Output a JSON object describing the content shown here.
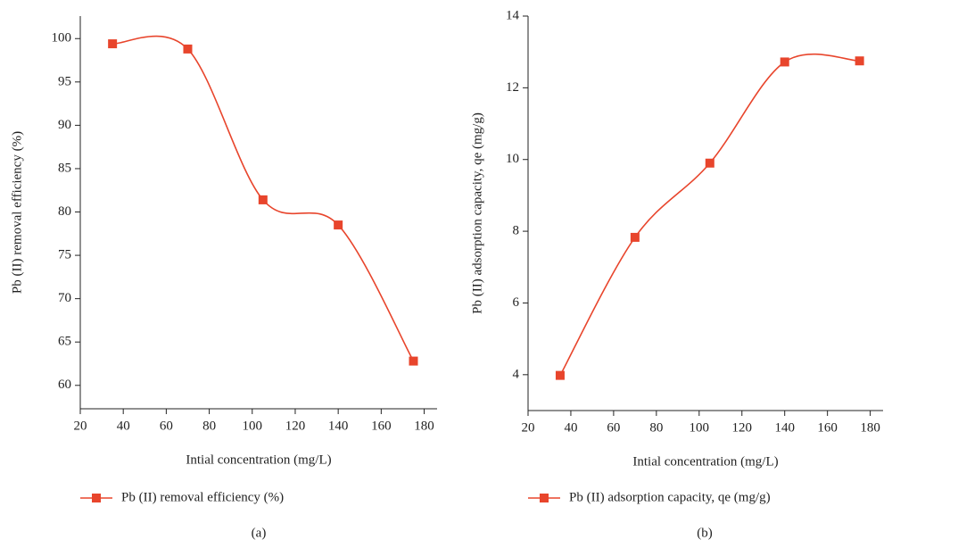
{
  "chart_data": [
    {
      "type": "line",
      "caption": "(a)",
      "x_label": "Intial concentration (mg/L)",
      "y_label": "Pb (II) removal efficiency (%)",
      "x": [
        35,
        70,
        105,
        140,
        175
      ],
      "series": [
        {
          "name": "Pb (II) removal efficiency (%)",
          "color": "#e8452c",
          "values": [
            99.4,
            98.8,
            81.4,
            78.5,
            62.8
          ]
        }
      ],
      "xlim": [
        20,
        186
      ],
      "xticks": [
        20,
        40,
        60,
        80,
        100,
        120,
        140,
        160,
        180
      ],
      "ylim": [
        57.3,
        102.6
      ],
      "yticks": [
        60,
        65,
        70,
        75,
        80,
        85,
        90,
        95,
        100
      ],
      "smooth": true,
      "grid": false
    },
    {
      "type": "line",
      "caption": "(b)",
      "x_label": "Intial concentration (mg/L)",
      "y_label": "Pb (II) adsorption capacity, qe (mg/g)",
      "x": [
        35,
        70,
        105,
        140,
        175
      ],
      "series": [
        {
          "name": "Pb (II) adsorption capacity, qe (mg/g)",
          "color": "#e8452c",
          "values": [
            3.98,
            7.83,
            9.9,
            12.72,
            12.75
          ]
        }
      ],
      "xlim": [
        20,
        186
      ],
      "xticks": [
        20,
        40,
        60,
        80,
        100,
        120,
        140,
        160,
        180
      ],
      "ylim": [
        3,
        14
      ],
      "yticks": [
        4,
        6,
        8,
        10,
        12,
        14
      ],
      "smooth": true,
      "grid": false
    }
  ]
}
